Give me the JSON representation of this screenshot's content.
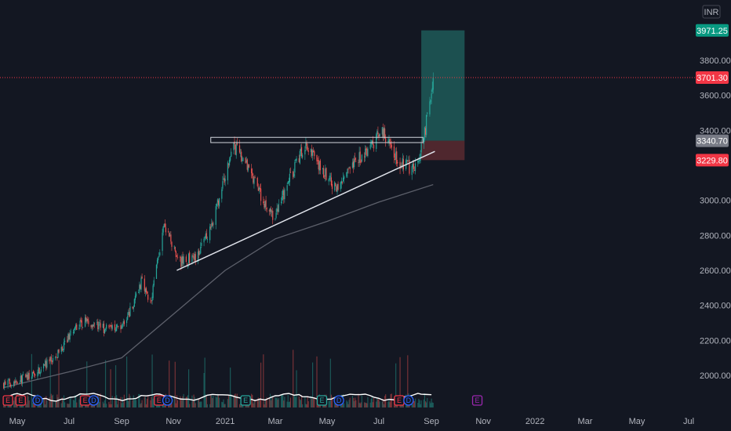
{
  "currency": "INR",
  "colors": {
    "background": "#131722",
    "up": "#26a69a",
    "down": "#ef5350",
    "axis_text": "#b2b5be",
    "target_zone": "#1e5b58",
    "stop_zone": "#5a2a30",
    "ma_line": "#5d606b",
    "volume_ma": "#ffffff",
    "last_price_tag": "#f23645",
    "target_tag": "#089981",
    "entry_tag": "#787b86",
    "stop_tag": "#f23645"
  },
  "chart_data": {
    "type": "candlestick",
    "y_axis": {
      "ticks": [
        "3800.00",
        "3600.00",
        "3400.00",
        "3000.00",
        "2800.00",
        "2600.00",
        "2400.00",
        "2200.00",
        "2000.00"
      ],
      "range": [
        1850,
        4000
      ]
    },
    "x_axis": {
      "ticks": [
        "May",
        "Jul",
        "Sep",
        "Nov",
        "2021",
        "Mar",
        "May",
        "Jul",
        "Sep",
        "Nov",
        "2022",
        "Mar",
        "May",
        "Jul"
      ],
      "range": [
        "2020-04-15",
        "2022-07-31"
      ]
    },
    "price_path": [
      {
        "date": "2020-04-15",
        "price": 1950
      },
      {
        "date": "2020-05-20",
        "price": 2000
      },
      {
        "date": "2020-06-20",
        "price": 2130
      },
      {
        "date": "2020-07-05",
        "price": 2260
      },
      {
        "date": "2020-07-20",
        "price": 2310
      },
      {
        "date": "2020-08-15",
        "price": 2260
      },
      {
        "date": "2020-09-05",
        "price": 2300
      },
      {
        "date": "2020-09-25",
        "price": 2540
      },
      {
        "date": "2020-10-05",
        "price": 2420
      },
      {
        "date": "2020-10-20",
        "price": 2850
      },
      {
        "date": "2020-11-10",
        "price": 2650
      },
      {
        "date": "2020-11-30",
        "price": 2680
      },
      {
        "date": "2020-12-20",
        "price": 2920
      },
      {
        "date": "2021-01-10",
        "price": 3310
      },
      {
        "date": "2021-01-20",
        "price": 3250
      },
      {
        "date": "2021-02-10",
        "price": 3050
      },
      {
        "date": "2021-02-27",
        "price": 2880
      },
      {
        "date": "2021-03-20",
        "price": 3150
      },
      {
        "date": "2021-04-05",
        "price": 3330
      },
      {
        "date": "2021-04-20",
        "price": 3200
      },
      {
        "date": "2021-05-10",
        "price": 3080
      },
      {
        "date": "2021-05-25",
        "price": 3150
      },
      {
        "date": "2021-06-15",
        "price": 3280
      },
      {
        "date": "2021-07-05",
        "price": 3390
      },
      {
        "date": "2021-07-25",
        "price": 3220
      },
      {
        "date": "2021-08-10",
        "price": 3180
      },
      {
        "date": "2021-08-22",
        "price": 3310
      },
      {
        "date": "2021-09-03",
        "price": 3720
      }
    ],
    "moving_average": [
      {
        "date": "2020-04-15",
        "price": 1930
      },
      {
        "date": "2020-07-01",
        "price": 2020
      },
      {
        "date": "2020-09-01",
        "price": 2100
      },
      {
        "date": "2020-11-01",
        "price": 2350
      },
      {
        "date": "2021-01-01",
        "price": 2600
      },
      {
        "date": "2021-03-01",
        "price": 2780
      },
      {
        "date": "2021-05-01",
        "price": 2880
      },
      {
        "date": "2021-07-01",
        "price": 2990
      },
      {
        "date": "2021-09-03",
        "price": 3090
      }
    ],
    "trendline": {
      "from": {
        "date": "2020-11-05",
        "price": 2600
      },
      "to": {
        "date": "2021-09-05",
        "price": 3280
      }
    },
    "resistance": {
      "from_date": "2020-12-15",
      "to_date": "2021-08-22",
      "low": 3330,
      "high": 3360
    },
    "position": {
      "start": "2021-08-20",
      "end": "2021-10-10",
      "entry": 3340.7,
      "target": 3971.25,
      "stop": 3229.8
    },
    "price_tags": [
      {
        "label": "3971.25",
        "price": 3971.25,
        "role": "target"
      },
      {
        "label": "3701.30",
        "price": 3701.3,
        "role": "last"
      },
      {
        "label": "3340.70",
        "price": 3340.7,
        "role": "entry"
      },
      {
        "label": "3229.80",
        "price": 3229.8,
        "role": "stop"
      }
    ],
    "events": [
      {
        "date": "2020-04-20",
        "glyph": "E",
        "color": "#f23645"
      },
      {
        "date": "2020-05-05",
        "glyph": "E",
        "color": "#f23645"
      },
      {
        "date": "2020-05-25",
        "glyph": "D",
        "color": "#2962ff"
      },
      {
        "date": "2020-07-20",
        "glyph": "E",
        "color": "#f23645"
      },
      {
        "date": "2020-07-30",
        "glyph": "D",
        "color": "#2962ff"
      },
      {
        "date": "2020-10-15",
        "glyph": "E",
        "color": "#f23645"
      },
      {
        "date": "2020-10-25",
        "glyph": "D",
        "color": "#2962ff"
      },
      {
        "date": "2021-01-25",
        "glyph": "E",
        "color": "#26a69a"
      },
      {
        "date": "2021-04-25",
        "glyph": "E",
        "color": "#26a69a"
      },
      {
        "date": "2021-05-15",
        "glyph": "D",
        "color": "#2962ff"
      },
      {
        "date": "2021-07-25",
        "glyph": "E",
        "color": "#f23645"
      },
      {
        "date": "2021-08-05",
        "glyph": "D",
        "color": "#2962ff"
      },
      {
        "date": "2021-10-25",
        "glyph": "E",
        "color": "#9c27b0"
      }
    ]
  }
}
